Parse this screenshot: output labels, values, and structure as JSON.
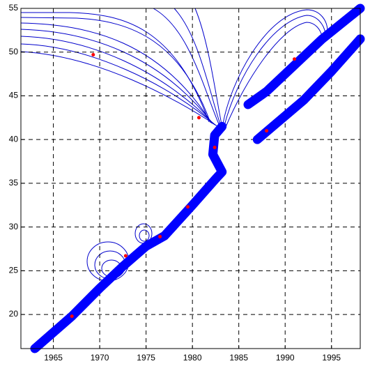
{
  "chart_data": {
    "type": "line",
    "xlim": [
      1961.5,
      1998.1
    ],
    "ylim": [
      16.1,
      55
    ],
    "xticks": [
      1965,
      1970,
      1975,
      1980,
      1985,
      1990,
      1995
    ],
    "yticks": [
      20,
      25,
      30,
      35,
      40,
      45,
      50,
      55
    ],
    "grid": true,
    "series": [
      {
        "color": "#0000ff",
        "x": [
          1963,
          1967,
          1970,
          1972.5,
          1975,
          1977,
          1980,
          1982.5,
          1983.2,
          1982.2,
          1982.4,
          1983.2
        ],
        "values": [
          16.1,
          19.8,
          23,
          25.5,
          27.8,
          29,
          32.5,
          35.5,
          36.3,
          38.3,
          40.5,
          41.5
        ]
      },
      {
        "color": "#0000ff",
        "x": [
          1986,
          1988,
          1991,
          1994,
          1998.1
        ],
        "values": [
          44,
          45.5,
          48.5,
          51.5,
          55
        ]
      },
      {
        "color": "#0000ff",
        "x": [
          1987,
          1989,
          1992,
          1995,
          1998.1
        ],
        "values": [
          40,
          41.8,
          44.5,
          47.8,
          51.5
        ]
      }
    ],
    "points": {
      "color": "#ff0000",
      "x": [
        1967,
        1969.3,
        1972.8,
        1976.5,
        1979.5,
        1980.7,
        1982.4,
        1988,
        1991
      ],
      "values": [
        19.8,
        49.7,
        26.7,
        28.9,
        32.3,
        42.5,
        39.1,
        41,
        49.2
      ]
    }
  }
}
